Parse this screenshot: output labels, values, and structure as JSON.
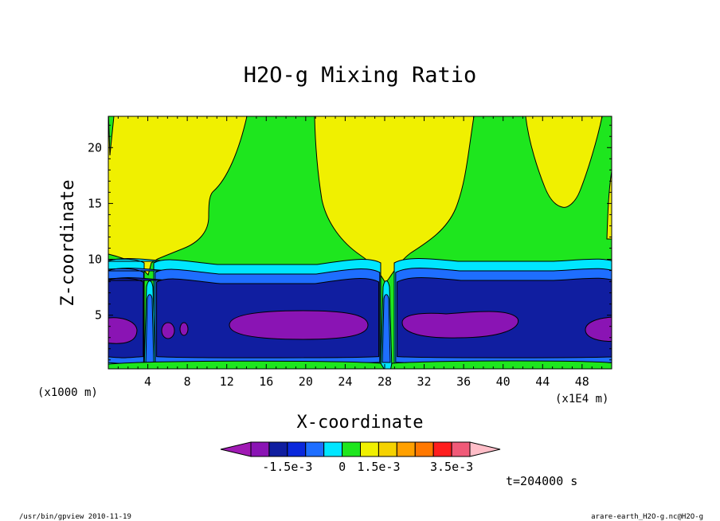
{
  "chart_data": {
    "type": "contour",
    "title": "H2O-g Mixing Ratio",
    "xlabel": "X-coordinate",
    "ylabel": "Z-coordinate",
    "x_unit": "(x1000 m)",
    "x_multiplier": "(x1E4 m)",
    "xlim": [
      0,
      51
    ],
    "ylim": [
      0.2,
      22.8
    ],
    "x_ticks": [
      4,
      8,
      12,
      16,
      20,
      24,
      28,
      32,
      36,
      40,
      44,
      48
    ],
    "y_ticks": [
      5,
      10,
      15,
      20
    ],
    "time_label": "t=204000 s",
    "colorbar": {
      "colors": [
        "#a01ab4",
        "#8a14b4",
        "#101ea0",
        "#0a28dc",
        "#1e6eff",
        "#00e6ff",
        "#1ee61e",
        "#f0f000",
        "#f5d200",
        "#ffa000",
        "#ff7800",
        "#ff1e1e",
        "#f05a78",
        "#ffbec8"
      ],
      "labels": [
        {
          "text": "-1.5e-3",
          "index": 3
        },
        {
          "text": "0",
          "index": 6
        },
        {
          "text": "1.5e-3",
          "index": 8
        },
        {
          "text": "3.5e-3",
          "index": 12
        }
      ]
    },
    "bands": [
      {
        "level": "green",
        "color": "#1ee61e"
      },
      {
        "level": "yellow",
        "color": "#f0f000"
      },
      {
        "level": "cyan",
        "color": "#00e6ff"
      },
      {
        "level": "blue",
        "color": "#1e6eff"
      },
      {
        "level": "dark-blue",
        "color": "#101ea0"
      },
      {
        "level": "purple",
        "color": "#8a14b4"
      }
    ]
  },
  "footer": {
    "left": "/usr/bin/gpview  2010-11-19",
    "right": "arare-earth_H2O-g.nc@H2O-g"
  }
}
